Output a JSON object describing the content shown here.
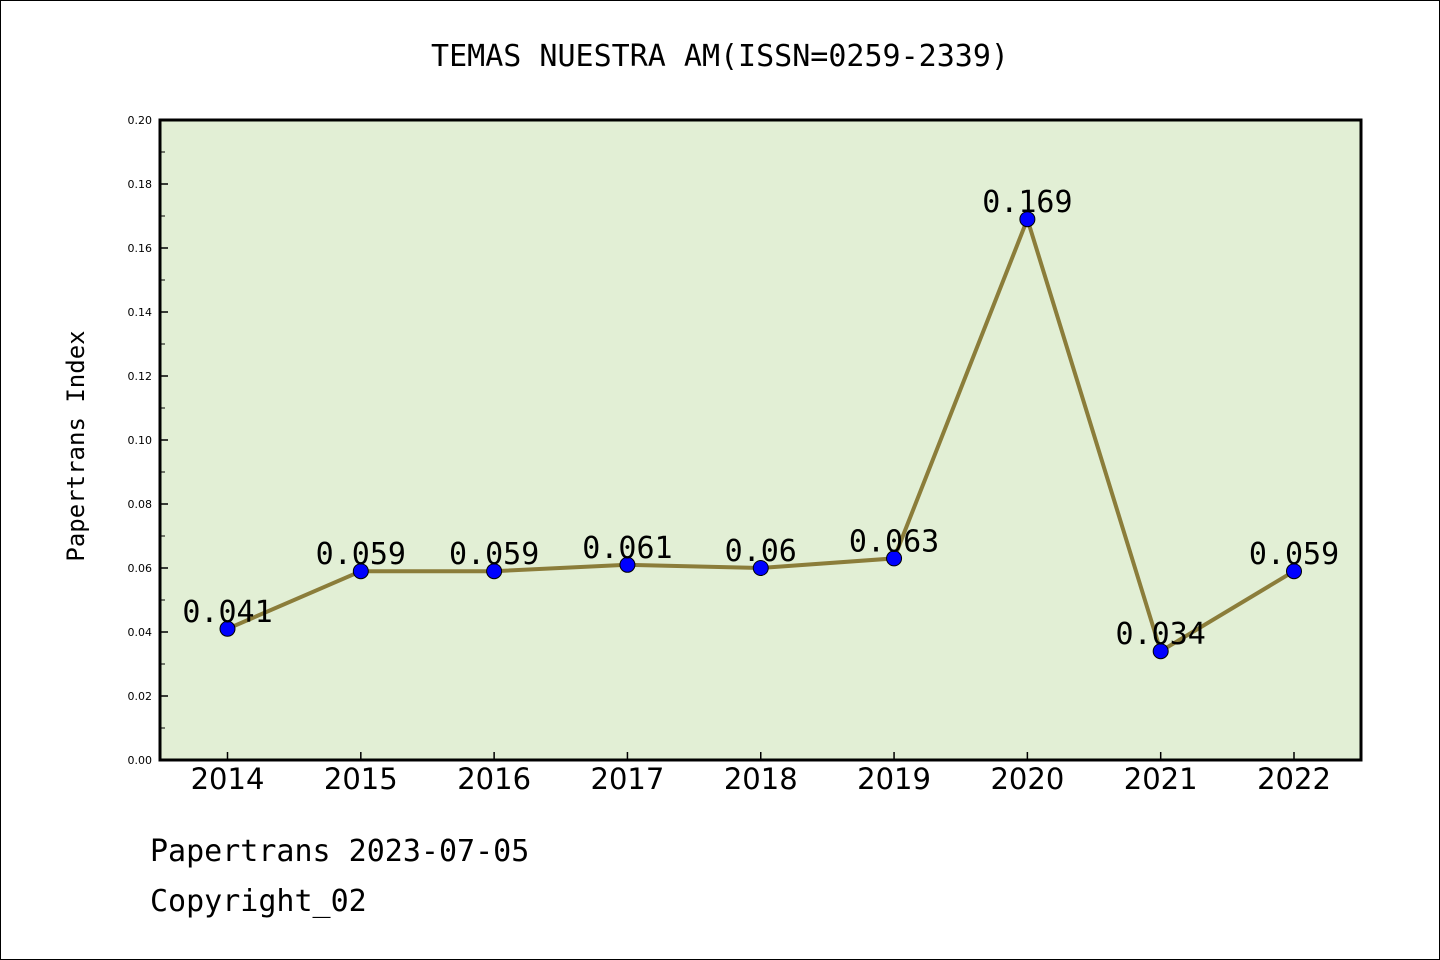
{
  "chart_data": {
    "type": "line",
    "title": "TEMAS NUESTRA AM(ISSN=0259-2339)",
    "ylabel": "Papertrans Index",
    "xlabel": "",
    "categories": [
      "2014",
      "2015",
      "2016",
      "2017",
      "2018",
      "2019",
      "2020",
      "2021",
      "2022"
    ],
    "values": [
      0.041,
      0.059,
      0.059,
      0.061,
      0.06,
      0.063,
      0.169,
      0.034,
      0.059
    ],
    "data_labels": [
      "0.041",
      "0.059",
      "0.059",
      "0.061",
      "0.06",
      "0.063",
      "0.169",
      "0.034",
      "0.059"
    ],
    "ylim": [
      0,
      0.2
    ],
    "yticks": [
      "0.00",
      "0.02",
      "0.04",
      "0.06",
      "0.08",
      "0.10",
      "0.12",
      "0.14",
      "0.16",
      "0.18",
      "0.20"
    ],
    "grid": false,
    "colors": {
      "line": "#8B7D3A",
      "marker": "#0000FF",
      "plot_background": "#E2EFD5"
    }
  },
  "footer": {
    "source": "Papertrans 2023-07-05",
    "copyright": "Copyright_02"
  }
}
